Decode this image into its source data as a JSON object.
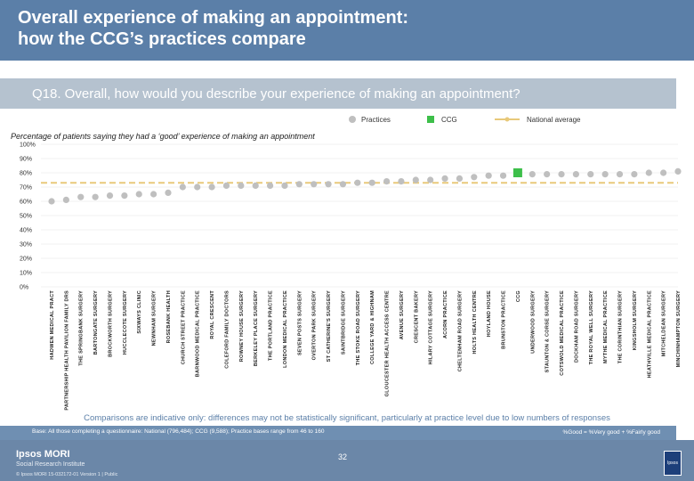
{
  "header": {
    "title_line1": "Overall experience of making an appointment:",
    "title_line2": "how the CCG’s practices compare"
  },
  "question": "Q18. Overall, how would you describe your experience of making an appointment?",
  "legend": {
    "practices": "Practices",
    "ccg": "CCG",
    "national": "National average"
  },
  "colors": {
    "practice": "#bfbfbf",
    "ccg": "#3dbf4a",
    "national": "#e8c97a",
    "header": "#5b7fa8"
  },
  "subtitle": "Percentage of patients saying they had a ‘good’ experience of making an appointment",
  "chart_data": {
    "type": "scatter",
    "ylim": [
      0,
      100
    ],
    "yticks": [
      "0%",
      "10%",
      "20%",
      "30%",
      "40%",
      "50%",
      "60%",
      "70%",
      "80%",
      "90%",
      "100%"
    ],
    "national_average": 73,
    "categories": [
      "HADWEN MEDICAL PRACT",
      "PARTNERSHIP HEALTH PAVILION FAMILY DRS",
      "THE SPRINGBANK SURGERY",
      "BARTONGATE SURGERY",
      "BROCKWORTH SURGERY",
      "HUCCLECOTE SURGERY",
      "SIXWAYS CLINIC",
      "NEWNHAM SURGERY",
      "ROSEBANK HEALTH",
      "CHURCH STREET PRACTICE",
      "BARNWOOD MEDICAL PRACTICE",
      "ROYAL CRESCENT",
      "COLEFORD FAMILY DOCTORS",
      "ROWNEY HOUSE SURGERY",
      "BERKELEY PLACE SURGERY",
      "THE PORTLAND PRACTICE",
      "LONDON MEDICAL PRACTICE",
      "SEVEN POSTS SURGERY",
      "OVERTON PARK SURGERY",
      "ST CATHERINE'S SURGERY",
      "SAINTBRIDGE SURGERY",
      "THE STOKE ROAD SURGERY",
      "COLLEGE YARD & HIGHNAM",
      "GLOUCESTER HEALTH ACCESS CENTRE",
      "AVENUE SURGERY",
      "CRESCENT BAKERY",
      "HILARY COTTAGE SURGERY",
      "ACORN PRACTICE",
      "CHELTENHAM ROAD SURGERY",
      "HOLTS HEALTH CENTRE",
      "HOYLAND HOUSE",
      "BRUNSTON PRACTICE",
      "CCG",
      "UNDERWOOD SURGERY",
      "STAUNTON & CORSE SURGERY",
      "COTSWOLD MEDICAL PRACTICE",
      "DOCKHAM ROAD SURGERY",
      "THE ROYAL WELL SURGERY",
      "MYTHE MEDICAL PRACTICE",
      "THE CORINTHIAN SURGERY",
      "KINGSHOLM SURGERY",
      "HEATHVILLE MEDICAL PRACTICE",
      "MITCHELDEAN SURGERY",
      "MINCHINHAMPTON SURGERY"
    ],
    "values": [
      60,
      61,
      63,
      63,
      64,
      64,
      65,
      65,
      66,
      70,
      70,
      70,
      71,
      71,
      71,
      71,
      71,
      72,
      72,
      72,
      72,
      73,
      73,
      74,
      74,
      75,
      75,
      76,
      76,
      77,
      78,
      78,
      80,
      79,
      79,
      79,
      79,
      79,
      79,
      79,
      79,
      80,
      80,
      81
    ],
    "ccg_index": 32
  },
  "note": "Comparisons are indicative only: differences may not be statistically significant, particularly at practice level due to low numbers of responses",
  "base": "Base: All those completing a questionnaire: National (796,484); CCG (9,588); Practice bases range from 46 to 160",
  "good_def": "%Good = %Very good + %Fairly good",
  "footer": {
    "brand": "Ipsos MORI",
    "brand_sub": "Social Research Institute",
    "copyright": "© Ipsos MORI     15-032172-01 Version 1 | Public",
    "page": "32",
    "logo_text": "Ipsos"
  }
}
